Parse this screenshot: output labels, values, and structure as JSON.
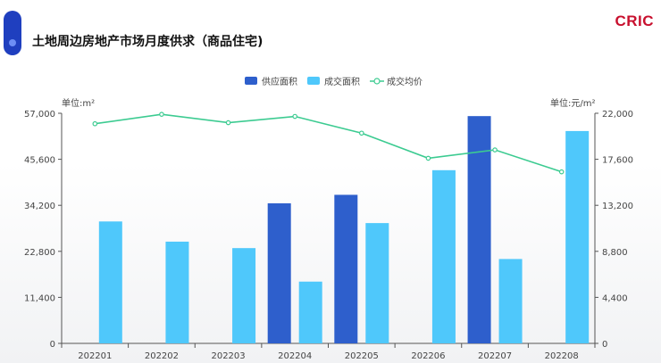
{
  "header": {
    "title": "土地周边房地产市场月度供求（商品住宅)",
    "brand": "CRIC"
  },
  "colors": {
    "supply": "#2e5fcc",
    "deal_area": "#4fc8fb",
    "avg_price": "#3ccb91",
    "header_icon": "#1f3fbf",
    "brand": "#c8102e"
  },
  "chart_data": {
    "type": "bar",
    "categories": [
      "202201",
      "202202",
      "202203",
      "202204",
      "202205",
      "202206",
      "202207",
      "202208"
    ],
    "series": [
      {
        "name": "供应面积",
        "type": "bar",
        "axis": "left",
        "values": [
          0,
          0,
          0,
          34700,
          36800,
          0,
          56300,
          0
        ]
      },
      {
        "name": "成交面积",
        "type": "bar",
        "axis": "left",
        "values": [
          30200,
          25200,
          23600,
          15300,
          29800,
          42900,
          20900,
          52600
        ]
      },
      {
        "name": "成交均价",
        "type": "line",
        "axis": "right",
        "values": [
          21000,
          21900,
          21100,
          21700,
          20100,
          17700,
          18500,
          16400
        ]
      }
    ],
    "y_left": {
      "label": "单位:m²",
      "range": [
        0,
        57000
      ],
      "ticks": [
        "0",
        "11,400",
        "22,800",
        "34,200",
        "45,600",
        "57,000"
      ]
    },
    "y_right": {
      "label": "单位:元/m²",
      "range": [
        0,
        22000
      ],
      "ticks": [
        "0",
        "4,400",
        "8,800",
        "13,200",
        "17,600",
        "22,000"
      ]
    },
    "legend_position": "top-center",
    "grid": false
  }
}
